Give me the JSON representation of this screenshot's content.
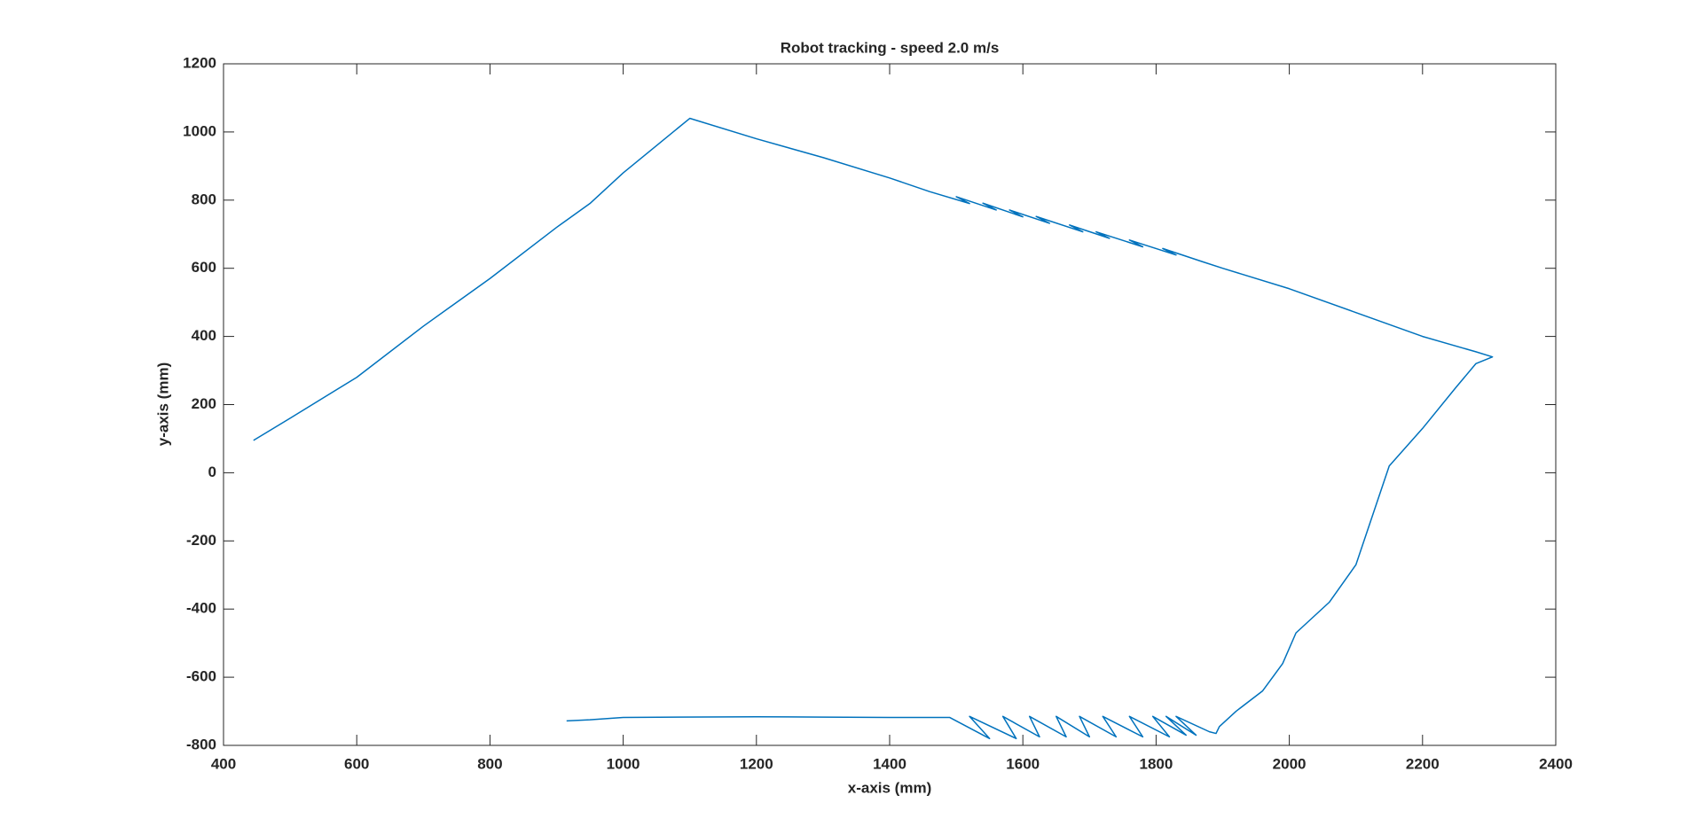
{
  "chart_data": {
    "type": "line",
    "title": "Robot tracking - speed 2.0 m/s",
    "xlabel": "x-axis (mm)",
    "ylabel": "y-axis (mm)",
    "x": [
      445,
      500,
      600,
      700,
      800,
      900,
      950,
      1000,
      1050,
      1100,
      1200,
      1300,
      1400,
      1460,
      1520,
      1500,
      1560,
      1540,
      1600,
      1580,
      1640,
      1620,
      1690,
      1670,
      1730,
      1710,
      1780,
      1760,
      1830,
      1810,
      1870,
      1900,
      2000,
      2100,
      2200,
      2280,
      2305,
      2280,
      2250,
      2200,
      2150,
      2100,
      2060,
      2010,
      1990,
      1960,
      1920,
      1895,
      1890,
      1880,
      1830,
      1860,
      1815,
      1845,
      1795,
      1820,
      1760,
      1780,
      1720,
      1740,
      1685,
      1700,
      1650,
      1665,
      1610,
      1625,
      1570,
      1590,
      1520,
      1550,
      1490,
      1400,
      1300,
      1200,
      1000,
      950,
      915
    ],
    "series": [
      {
        "color": "#0072bd",
        "values": [
          95,
          160,
          280,
          430,
          570,
          720,
          790,
          880,
          960,
          1040,
          980,
          925,
          865,
          825,
          790,
          810,
          771,
          791,
          751,
          771,
          732,
          752,
          707,
          727,
          688,
          707,
          663,
          683,
          639,
          658,
          619,
          600,
          540,
          470,
          400,
          355,
          340,
          320,
          250,
          130,
          20,
          -270,
          -380,
          -470,
          -560,
          -640,
          -700,
          -745,
          -765,
          -760,
          -715,
          -770,
          -715,
          -770,
          -715,
          -775,
          -715,
          -775,
          -715,
          -775,
          -715,
          -775,
          -715,
          -775,
          -715,
          -775,
          -715,
          -780,
          -715,
          -780,
          -718,
          -718,
          -717,
          -716,
          -718,
          -725,
          -728
        ]
      }
    ],
    "xlim": [
      400,
      2400
    ],
    "ylim": [
      -800,
      1200
    ],
    "xticks": [
      400,
      600,
      800,
      1000,
      1200,
      1400,
      1600,
      1800,
      2000,
      2200,
      2400
    ],
    "yticks": [
      -800,
      -600,
      -400,
      -200,
      0,
      200,
      400,
      600,
      800,
      1000,
      1200
    ]
  }
}
